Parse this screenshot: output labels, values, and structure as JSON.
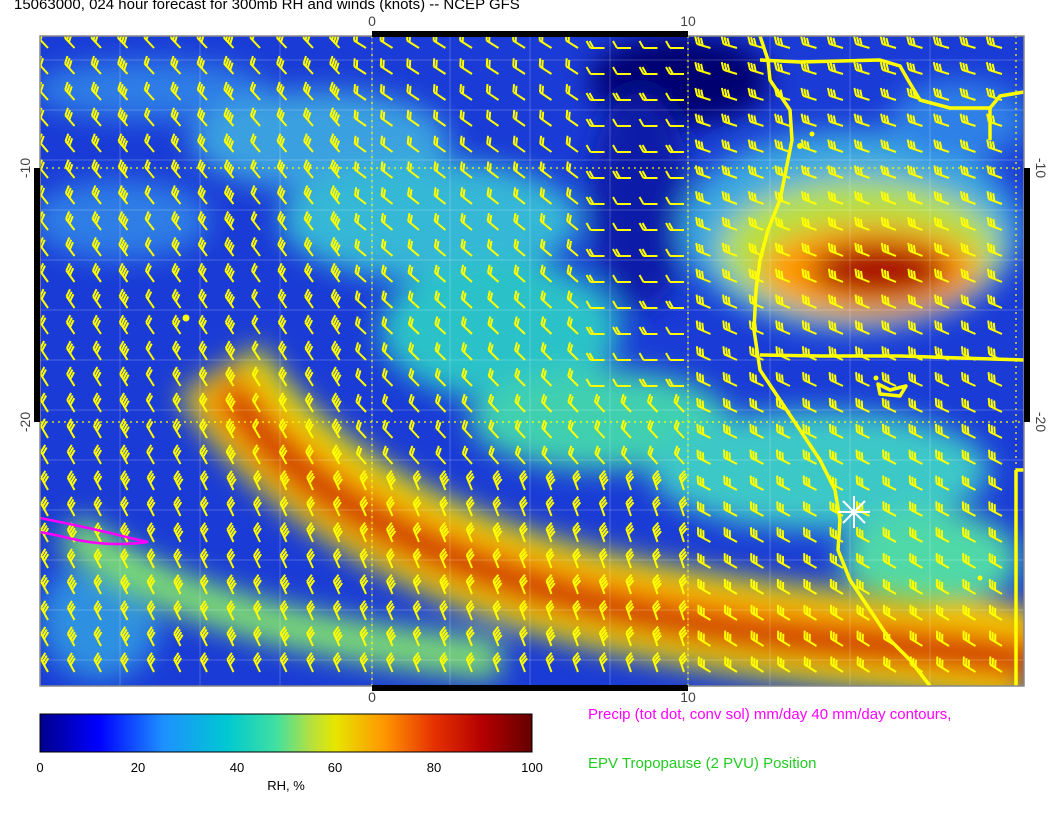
{
  "title": "15063000, 024 hour forecast for 300mb RH and winds (knots) -- NCEP GFS",
  "map": {
    "lon_ticks": [
      "0",
      "10"
    ],
    "lat_ticks": [
      "-10",
      "-20"
    ],
    "field": "RH",
    "wind_units": "knots"
  },
  "colorbar": {
    "label": "RH, %",
    "ticks": [
      "0",
      "20",
      "40",
      "60",
      "80",
      "100"
    ],
    "colors": [
      "#00008b",
      "#0000ff",
      "#1e90ff",
      "#00c8d2",
      "#40e0a0",
      "#b4e040",
      "#e6e600",
      "#ff9600",
      "#e63200",
      "#b40000",
      "#640000"
    ]
  },
  "legends": {
    "precip": "Precip (tot dot, conv sol) mm/day 40 mm/day contours,",
    "epv": "EPV Tropopause (2 PVU) Position"
  },
  "colors": {
    "barbs": "#ffff00",
    "coastline": "#ffff00",
    "precip": "#ff00ff",
    "epv": "#22cc22"
  }
}
